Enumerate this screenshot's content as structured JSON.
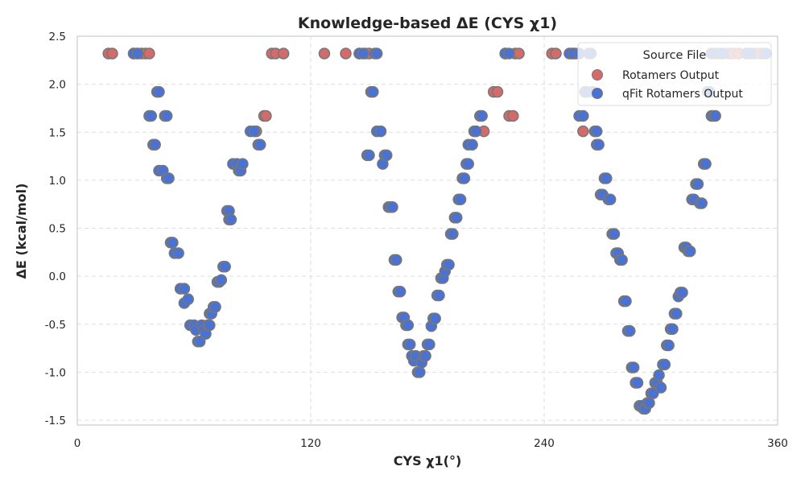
{
  "chart_data": {
    "type": "scatter",
    "title": "Knowledge-based ΔE (CYS χ1)",
    "xlabel": "CYS χ1(°)",
    "ylabel": "ΔE (kcal/mol)",
    "xlim": [
      0,
      360
    ],
    "ylim": [
      -1.55,
      2.5
    ],
    "xticks": [
      0,
      120,
      240,
      360
    ],
    "yticks": [
      -1.5,
      -1.0,
      -0.5,
      0.0,
      0.5,
      1.0,
      1.5,
      2.0,
      2.5
    ],
    "grid": true,
    "legend": {
      "title": "Source File",
      "position": "top-right"
    },
    "series": [
      {
        "name": "Rotamers Output",
        "color": "#d46a6a",
        "points": [
          [
            16,
            2.32
          ],
          [
            18,
            2.32
          ],
          [
            29,
            2.32
          ],
          [
            31,
            2.32
          ],
          [
            33,
            2.32
          ],
          [
            35,
            2.32
          ],
          [
            37,
            2.32
          ],
          [
            100,
            2.32
          ],
          [
            102,
            2.32
          ],
          [
            106,
            2.32
          ],
          [
            127,
            2.32
          ],
          [
            138,
            2.32
          ],
          [
            145,
            2.32
          ],
          [
            148,
            2.32
          ],
          [
            150,
            2.32
          ],
          [
            209,
            1.51
          ],
          [
            214,
            1.92
          ],
          [
            216,
            1.92
          ],
          [
            220,
            2.32
          ],
          [
            222,
            1.67
          ],
          [
            224,
            1.67
          ],
          [
            225,
            2.32
          ],
          [
            227,
            2.32
          ],
          [
            244,
            2.32
          ],
          [
            246,
            2.32
          ],
          [
            254,
            2.32
          ],
          [
            256,
            2.32
          ],
          [
            260,
            1.51
          ],
          [
            92,
            1.51
          ],
          [
            94,
            1.37
          ],
          [
            96,
            1.67
          ],
          [
            97,
            1.67
          ],
          [
            335,
            2.32
          ],
          [
            337,
            2.32
          ],
          [
            340,
            2.32
          ],
          [
            344,
            2.32
          ],
          [
            346,
            2.32
          ],
          [
            348,
            2.32
          ],
          [
            351,
            2.32
          ],
          [
            353,
            2.32
          ]
        ]
      },
      {
        "name": "qFit Rotamers Output",
        "color": "#4a72d4",
        "points": [
          [
            29,
            2.32
          ],
          [
            31,
            2.32
          ],
          [
            37,
            1.67
          ],
          [
            38,
            1.67
          ],
          [
            39,
            1.37
          ],
          [
            40,
            1.37
          ],
          [
            41,
            1.92
          ],
          [
            42,
            1.92
          ],
          [
            42,
            1.1
          ],
          [
            44,
            1.1
          ],
          [
            45,
            1.67
          ],
          [
            46,
            1.67
          ],
          [
            46,
            1.02
          ],
          [
            47,
            1.02
          ],
          [
            48,
            0.35
          ],
          [
            49,
            0.35
          ],
          [
            50,
            0.24
          ],
          [
            52,
            0.24
          ],
          [
            53,
            -0.13
          ],
          [
            55,
            -0.13
          ],
          [
            55,
            -0.28
          ],
          [
            57,
            -0.24
          ],
          [
            58,
            -0.51
          ],
          [
            60,
            -0.51
          ],
          [
            61,
            -0.56
          ],
          [
            62,
            -0.68
          ],
          [
            63,
            -0.68
          ],
          [
            64,
            -0.51
          ],
          [
            65,
            -0.56
          ],
          [
            66,
            -0.6
          ],
          [
            67,
            -0.51
          ],
          [
            68,
            -0.51
          ],
          [
            68,
            -0.39
          ],
          [
            69,
            -0.39
          ],
          [
            70,
            -0.32
          ],
          [
            71,
            -0.32
          ],
          [
            72,
            -0.06
          ],
          [
            73,
            -0.06
          ],
          [
            74,
            -0.04
          ],
          [
            75,
            0.1
          ],
          [
            76,
            0.1
          ],
          [
            77,
            0.68
          ],
          [
            78,
            0.68
          ],
          [
            78,
            0.59
          ],
          [
            79,
            0.59
          ],
          [
            80,
            1.17
          ],
          [
            82,
            1.17
          ],
          [
            83,
            1.1
          ],
          [
            84,
            1.1
          ],
          [
            85,
            1.17
          ],
          [
            89,
            1.51
          ],
          [
            91,
            1.51
          ],
          [
            93,
            1.37
          ],
          [
            94,
            1.37
          ],
          [
            145,
            2.32
          ],
          [
            147,
            2.32
          ],
          [
            149,
            1.26
          ],
          [
            150,
            1.26
          ],
          [
            151,
            1.92
          ],
          [
            152,
            1.92
          ],
          [
            153,
            2.32
          ],
          [
            154,
            2.32
          ],
          [
            154,
            1.51
          ],
          [
            156,
            1.51
          ],
          [
            157,
            1.17
          ],
          [
            158,
            1.26
          ],
          [
            159,
            1.26
          ],
          [
            160,
            0.72
          ],
          [
            161,
            0.72
          ],
          [
            162,
            0.72
          ],
          [
            163,
            0.17
          ],
          [
            164,
            0.17
          ],
          [
            165,
            -0.16
          ],
          [
            166,
            -0.16
          ],
          [
            167,
            -0.43
          ],
          [
            168,
            -0.43
          ],
          [
            169,
            -0.51
          ],
          [
            170,
            -0.51
          ],
          [
            170,
            -0.71
          ],
          [
            171,
            -0.71
          ],
          [
            172,
            -0.83
          ],
          [
            173,
            -0.88
          ],
          [
            174,
            -0.83
          ],
          [
            175,
            -1.0
          ],
          [
            176,
            -1.0
          ],
          [
            177,
            -0.9
          ],
          [
            178,
            -0.83
          ],
          [
            179,
            -0.83
          ],
          [
            180,
            -0.71
          ],
          [
            181,
            -0.71
          ],
          [
            182,
            -0.52
          ],
          [
            183,
            -0.44
          ],
          [
            184,
            -0.44
          ],
          [
            185,
            -0.2
          ],
          [
            186,
            -0.2
          ],
          [
            187,
            -0.02
          ],
          [
            188,
            -0.02
          ],
          [
            189,
            0.05
          ],
          [
            190,
            0.12
          ],
          [
            191,
            0.12
          ],
          [
            192,
            0.44
          ],
          [
            193,
            0.44
          ],
          [
            194,
            0.61
          ],
          [
            195,
            0.61
          ],
          [
            196,
            0.8
          ],
          [
            197,
            0.8
          ],
          [
            198,
            1.02
          ],
          [
            199,
            1.02
          ],
          [
            200,
            1.17
          ],
          [
            201,
            1.17
          ],
          [
            201,
            1.37
          ],
          [
            203,
            1.37
          ],
          [
            204,
            1.51
          ],
          [
            205,
            1.51
          ],
          [
            207,
            1.67
          ],
          [
            208,
            1.67
          ],
          [
            220,
            2.32
          ],
          [
            222,
            2.32
          ],
          [
            253,
            2.32
          ],
          [
            255,
            2.32
          ],
          [
            258,
            2.32
          ],
          [
            258,
            1.67
          ],
          [
            260,
            1.67
          ],
          [
            261,
            1.92
          ],
          [
            262,
            1.92
          ],
          [
            263,
            2.32
          ],
          [
            264,
            2.32
          ],
          [
            265,
            1.92
          ],
          [
            266,
            1.51
          ],
          [
            267,
            1.51
          ],
          [
            267,
            1.37
          ],
          [
            268,
            1.37
          ],
          [
            269,
            0.85
          ],
          [
            270,
            0.85
          ],
          [
            271,
            1.02
          ],
          [
            272,
            1.02
          ],
          [
            273,
            0.8
          ],
          [
            274,
            0.8
          ],
          [
            275,
            0.44
          ],
          [
            276,
            0.44
          ],
          [
            277,
            0.24
          ],
          [
            278,
            0.24
          ],
          [
            279,
            0.17
          ],
          [
            280,
            0.17
          ],
          [
            281,
            -0.26
          ],
          [
            282,
            -0.26
          ],
          [
            283,
            -0.57
          ],
          [
            284,
            -0.57
          ],
          [
            285,
            -0.95
          ],
          [
            286,
            -0.95
          ],
          [
            287,
            -1.11
          ],
          [
            288,
            -1.11
          ],
          [
            289,
            -1.35
          ],
          [
            290,
            -1.35
          ],
          [
            291,
            -1.38
          ],
          [
            292,
            -1.38
          ],
          [
            293,
            -1.32
          ],
          [
            294,
            -1.32
          ],
          [
            295,
            -1.22
          ],
          [
            296,
            -1.22
          ],
          [
            297,
            -1.11
          ],
          [
            298,
            -1.11
          ],
          [
            299,
            -1.03
          ],
          [
            300,
            -1.16
          ],
          [
            301,
            -0.92
          ],
          [
            302,
            -0.92
          ],
          [
            303,
            -0.72
          ],
          [
            304,
            -0.72
          ],
          [
            305,
            -0.55
          ],
          [
            306,
            -0.55
          ],
          [
            307,
            -0.39
          ],
          [
            308,
            -0.39
          ],
          [
            309,
            -0.21
          ],
          [
            310,
            -0.17
          ],
          [
            311,
            -0.17
          ],
          [
            312,
            0.3
          ],
          [
            313,
            0.3
          ],
          [
            314,
            0.26
          ],
          [
            315,
            0.26
          ],
          [
            316,
            0.8
          ],
          [
            317,
            0.8
          ],
          [
            318,
            0.96
          ],
          [
            319,
            0.96
          ],
          [
            320,
            0.76
          ],
          [
            321,
            0.76
          ],
          [
            322,
            1.17
          ],
          [
            323,
            1.17
          ],
          [
            324,
            1.92
          ],
          [
            325,
            1.92
          ],
          [
            326,
            1.67
          ],
          [
            327,
            1.67
          ],
          [
            328,
            1.67
          ],
          [
            326,
            2.32
          ],
          [
            328,
            2.32
          ],
          [
            330,
            2.32
          ],
          [
            332,
            2.32
          ],
          [
            344,
            2.32
          ],
          [
            346,
            2.32
          ],
          [
            354,
            2.32
          ]
        ]
      }
    ]
  }
}
